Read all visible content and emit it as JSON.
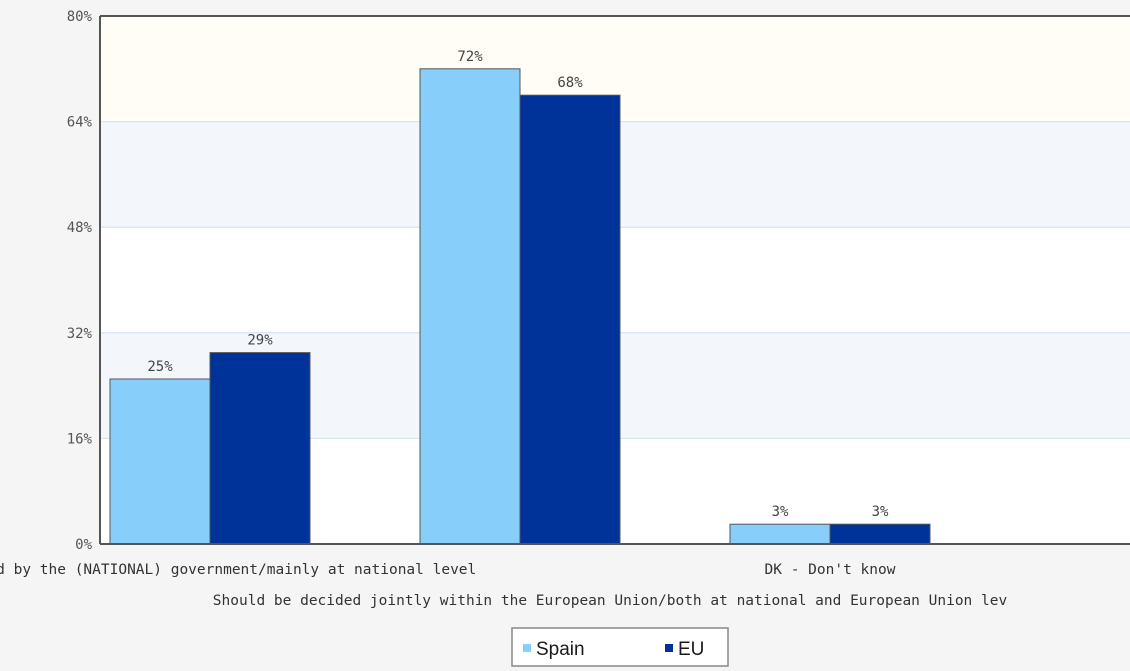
{
  "chart_data": {
    "type": "bar",
    "categories": [
      "decided by the (NATIONAL) government/mainly at national level",
      "Should be decided jointly within the European Union/both at national and European Union lev",
      "DK - Don't know"
    ],
    "series": [
      {
        "name": "Spain",
        "values": [
          25,
          72,
          3
        ],
        "labels": [
          "25%",
          "72%",
          "3%"
        ],
        "color": "#87cefa"
      },
      {
        "name": "EU",
        "values": [
          29,
          68,
          3
        ],
        "labels": [
          "29%",
          "68%",
          "3%"
        ],
        "color": "#003399"
      }
    ],
    "yticks": [
      "0%",
      "16%",
      "32%",
      "48%",
      "64%",
      "80%"
    ],
    "ylim": [
      0,
      80
    ],
    "grid": true,
    "legend": "bottom-center"
  },
  "colors": {
    "page_background": "#f5f5f5",
    "plot_background": "#ffffff",
    "alt_band": "#f3f7fc",
    "top_band": "#fffdf6",
    "gridline": "#cfdff0",
    "axis": "#555555"
  }
}
